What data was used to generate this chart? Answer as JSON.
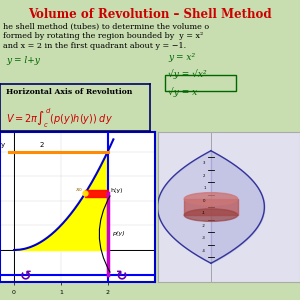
{
  "bg_color": "#c8ddb0",
  "title": "Volume of Revolution – Shell Method",
  "title_color": "#cc0000",
  "title_fontsize": 8.5,
  "subtitle_lines": [
    "he shell method (tubes) to determine the volume o",
    "formed by rotating the region bounded by  y = x²",
    "and x = 2 in the first quadrant about y = −1."
  ],
  "subtitle_color": "#000000",
  "subtitle_fontsize": 5.8,
  "handwritten_left": "y = l+y",
  "handwritten_right_lines": [
    "y = x²",
    "√y = √x²",
    "√y = x"
  ],
  "handwritten_color": "#006600",
  "box_title": "Horizontal Axis of Revolution",
  "formula_color": "#cc0000",
  "graph_bg": "#ffffff",
  "graph_border_color": "#0000cc",
  "graph_ylim": [
    -1.3,
    4.8
  ],
  "graph_xlim": [
    -0.3,
    3.0
  ],
  "curve_color": "#0000cc",
  "fill_color": "#ffff00",
  "shell_h_color": "#ff0000",
  "shell_p_color": "#cc00cc",
  "horizontal_line_color": "#ff8c00",
  "axis_of_rev_color": "#0000ff",
  "annotation_color": "#000000",
  "curly_color": "#6600aa",
  "right_panel_bg": "#e0e0ee"
}
